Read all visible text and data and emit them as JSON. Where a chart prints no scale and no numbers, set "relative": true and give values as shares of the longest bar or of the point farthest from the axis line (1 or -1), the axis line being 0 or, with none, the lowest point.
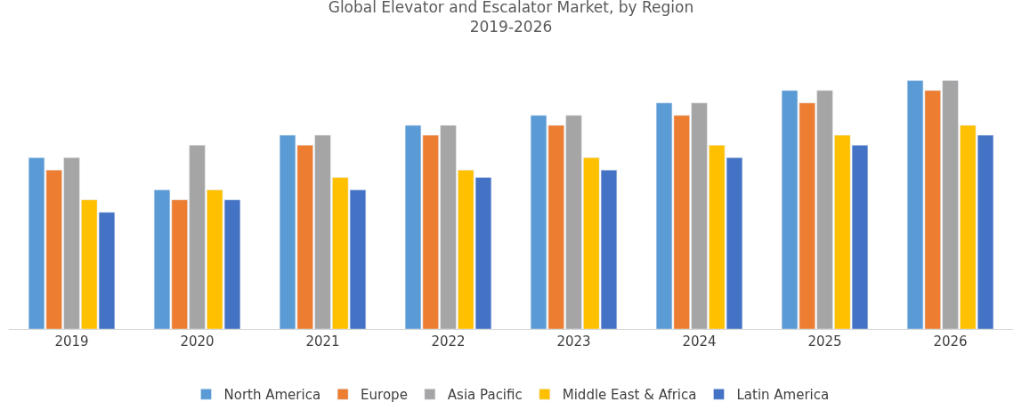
{
  "chart_data": {
    "type": "bar",
    "title": "Global Elevator and Escalator Market, by Region",
    "subtitle": "2019-2026",
    "relative": true,
    "legend": "bottom",
    "categories": [
      "2019",
      "2020",
      "2021",
      "2022",
      "2023",
      "2024",
      "2025",
      "2026"
    ],
    "series": [
      {
        "name": "North America",
        "color": "#5b9bd5",
        "values": [
          0.69,
          0.56,
          0.78,
          0.82,
          0.86,
          0.91,
          0.96,
          1
        ]
      },
      {
        "name": "Europe",
        "color": "#ed7d31",
        "values": [
          0.64,
          0.52,
          0.74,
          0.78,
          0.82,
          0.86,
          0.91,
          0.96
        ]
      },
      {
        "name": "Asia Pacific",
        "color": "#a5a5a5",
        "values": [
          0.69,
          0.74,
          0.78,
          0.82,
          0.86,
          0.91,
          0.96,
          1
        ]
      },
      {
        "name": "Middle East & Africa",
        "color": "#ffc000",
        "values": [
          0.52,
          0.56,
          0.61,
          0.64,
          0.69,
          0.74,
          0.78,
          0.82
        ]
      },
      {
        "name": "Latin America",
        "color": "#4472c4",
        "values": [
          0.47,
          0.52,
          0.56,
          0.61,
          0.64,
          0.69,
          0.74,
          0.78
        ]
      }
    ]
  }
}
